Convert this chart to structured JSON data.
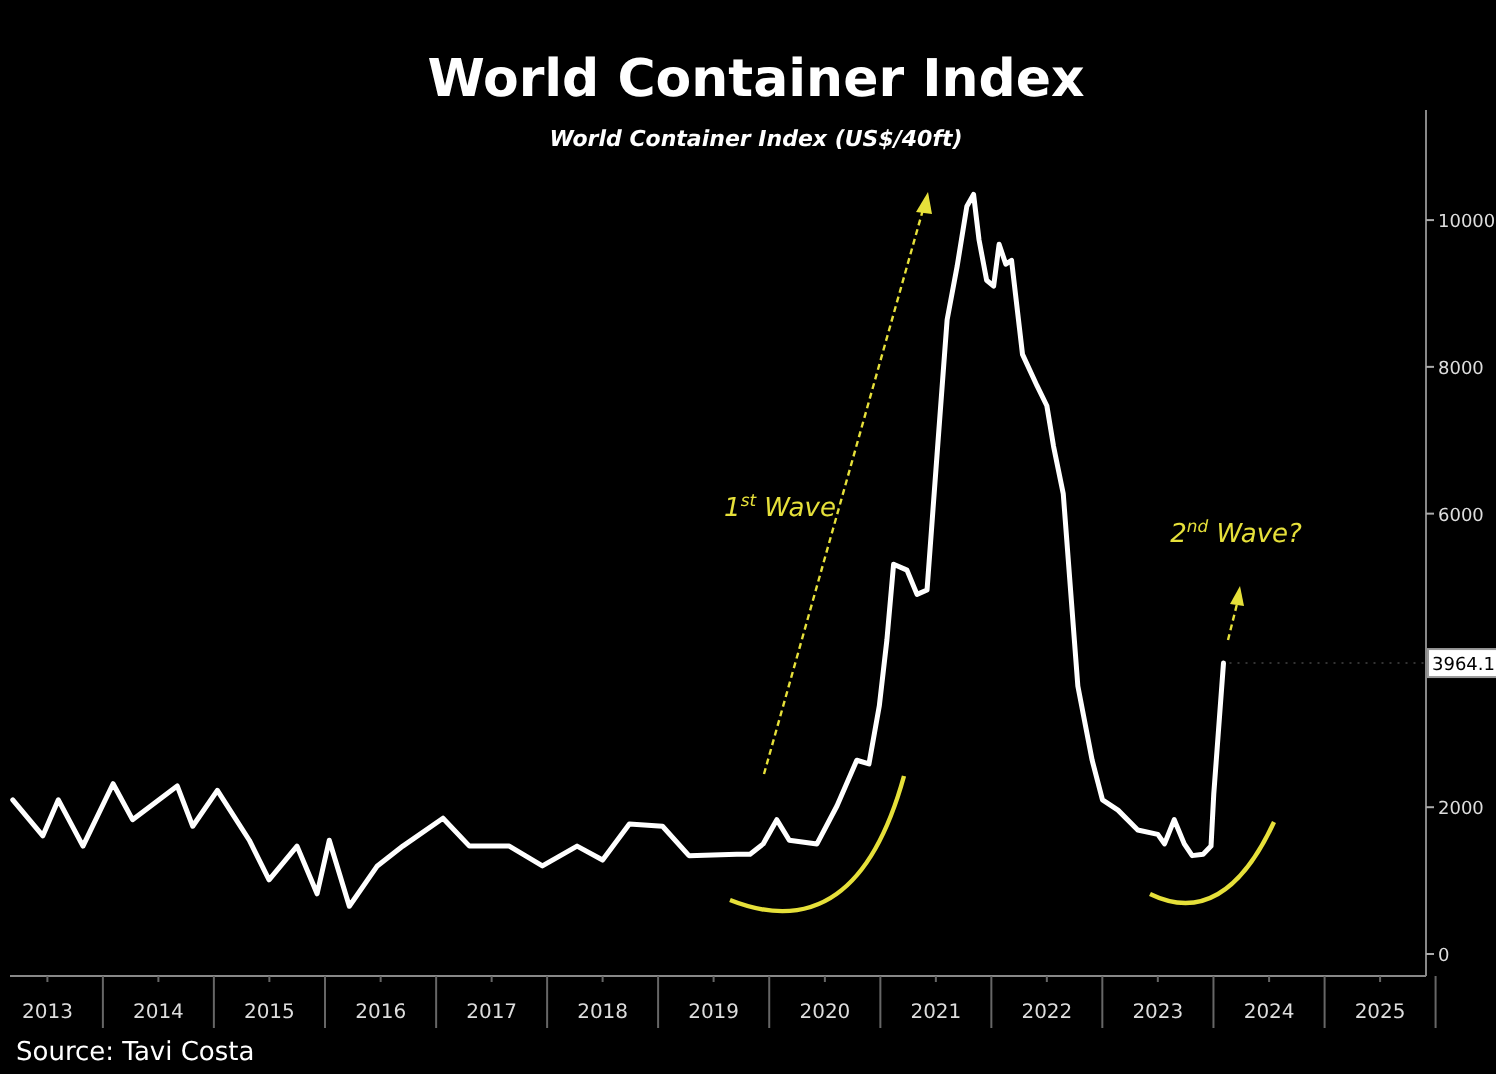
{
  "chart_data": {
    "type": "line",
    "title": "World Container Index",
    "subtitle": "World Container Index (US$/40ft)",
    "x": [
      "2013-03-10",
      "2013-06-17",
      "2013-08-07",
      "2013-10-27",
      "2014-02-03",
      "2014-04-08",
      "2014-09-02",
      "2014-10-23",
      "2015-01-12",
      "2015-04-27",
      "2015-07-01",
      "2015-10-01",
      "2015-12-06",
      "2016-01-15",
      "2016-03-21",
      "2016-06-21",
      "2016-09-13",
      "2017-01-23",
      "2017-04-20",
      "2017-08-29",
      "2017-12-16",
      "2018-04-09",
      "2018-07-02",
      "2018-09-28",
      "2019-01-15",
      "2019-04-12",
      "2019-09-16",
      "2019-10-30",
      "2019-12-12",
      "2020-01-26",
      "2020-03-07",
      "2020-06-06",
      "2020-08-11",
      "2020-10-15",
      "2020-11-24",
      "2020-12-28",
      "2021-01-22",
      "2021-02-13",
      "2021-03-29",
      "2021-05-01",
      "2021-06-03",
      "2021-07-06",
      "2021-08-08",
      "2021-09-10",
      "2021-10-12",
      "2021-11-03",
      "2021-11-21",
      "2021-12-16",
      "2022-01-08",
      "2022-01-26",
      "2022-02-17",
      "2022-03-08",
      "2022-04-13",
      "2022-05-31",
      "2022-07-02",
      "2022-07-24",
      "2022-08-25",
      "2022-10-12",
      "2022-11-28",
      "2023-01-01",
      "2023-02-21",
      "2023-04-27",
      "2023-07-02",
      "2023-07-24",
      "2023-08-25",
      "2023-09-27",
      "2023-10-23",
      "2023-11-28",
      "2023-12-24",
      "2024-01-02",
      "2024-02-03"
    ],
    "series": [
      {
        "color": "#ffffff",
        "values": [
          2100,
          1610,
          2100,
          1470,
          2320,
          1830,
          2290,
          1740,
          2230,
          1550,
          1010,
          1470,
          820,
          1550,
          650,
          1200,
          1470,
          1850,
          1470,
          1470,
          1200,
          1470,
          1280,
          1770,
          1740,
          1340,
          1360,
          1360,
          1500,
          1830,
          1550,
          1500,
          2020,
          2640,
          2590,
          3380,
          4280,
          5310,
          5230,
          4900,
          4960,
          6810,
          8640,
          9370,
          10190,
          10350,
          9730,
          9180,
          9100,
          9670,
          9400,
          9450,
          8170,
          7740,
          7470,
          6920,
          6270,
          3650,
          2640,
          2100,
          1960,
          1690,
          1630,
          1500,
          1830,
          1500,
          1340,
          1360,
          1470,
          2180,
          3964.1
        ]
      }
    ],
    "xlim": [
      "2013-03-01",
      "2025-11-30"
    ],
    "xticks": [
      {
        "value": "2013-07-02",
        "label": "2013"
      },
      {
        "value": "2014-07-02",
        "label": "2014"
      },
      {
        "value": "2015-07-02",
        "label": "2015"
      },
      {
        "value": "2016-07-02",
        "label": "2016"
      },
      {
        "value": "2017-07-02",
        "label": "2017"
      },
      {
        "value": "2018-07-02",
        "label": "2018"
      },
      {
        "value": "2019-07-02",
        "label": "2019"
      },
      {
        "value": "2020-07-02",
        "label": "2020"
      },
      {
        "value": "2021-07-02",
        "label": "2021"
      },
      {
        "value": "2022-07-02",
        "label": "2022"
      },
      {
        "value": "2023-07-02",
        "label": "2023"
      },
      {
        "value": "2024-07-02",
        "label": "2024"
      },
      {
        "value": "2025-07-02",
        "label": "2025"
      }
    ],
    "ylim": [
      -300,
      11500
    ],
    "yticks": [
      0,
      2000,
      6000,
      8000,
      10000
    ],
    "grid": false,
    "annotations": [
      "1$^{st}$ Wave",
      "2$^{nd}$ Wave?",
      "Source: Tavi Costa",
      {
        "text": "3964.1",
        "x": "2024-02-03",
        "y": 3964.1
      }
    ]
  }
}
